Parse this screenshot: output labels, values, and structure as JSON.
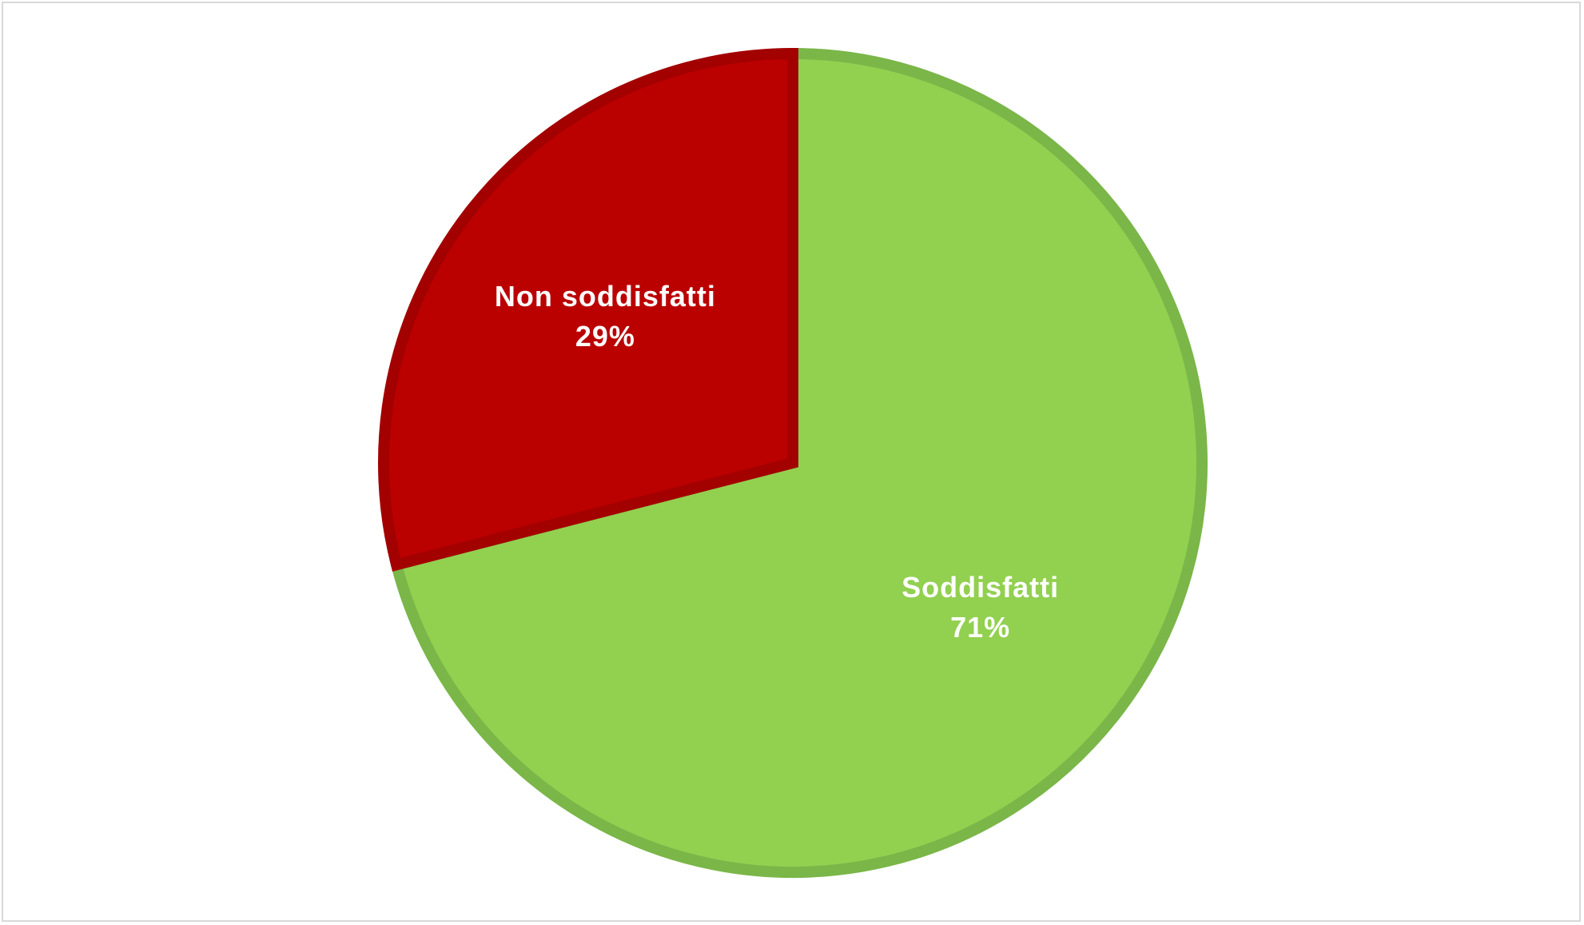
{
  "chart_data": {
    "type": "pie",
    "title": "",
    "start_angle_deg": 0,
    "direction": "clockwise",
    "slices": [
      {
        "name": "Soddisfatti",
        "value": 71,
        "label": "Soddisfatti",
        "value_label": "71%",
        "fill": "#92d050",
        "stroke": "#7ab648"
      },
      {
        "name": "Non soddisfatti",
        "value": 29,
        "label": "Non soddisfatti",
        "value_label": "29%",
        "fill": "#bb0000",
        "stroke": "#a30000"
      }
    ],
    "legend": "none"
  }
}
